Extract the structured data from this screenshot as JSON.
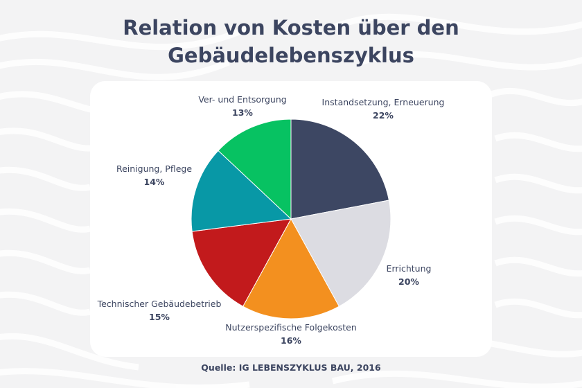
{
  "chart_data": {
    "type": "pie",
    "title": "Relation von Kosten über den Gebäudelebenszyklus",
    "slices": [
      {
        "label": "Instandsetzung, Erneuerung",
        "value": 22,
        "value_label": "22%",
        "color": "#3d4763"
      },
      {
        "label": "Errichtung",
        "value": 20,
        "value_label": "20%",
        "color": "#dcdce2"
      },
      {
        "label": "Nutzerspezifische Folgekosten",
        "value": 16,
        "value_label": "16%",
        "color": "#f3901f"
      },
      {
        "label": "Technischer Gebäudebetrieb",
        "value": 15,
        "value_label": "15%",
        "color": "#c21a1c"
      },
      {
        "label": "Reinigung, Pflege",
        "value": 14,
        "value_label": "14%",
        "color": "#0898a6"
      },
      {
        "label": "Ver- und Entsorgung",
        "value": 13,
        "value_label": "13%",
        "color": "#07c262"
      }
    ],
    "legend": "none"
  },
  "source": "Quelle: IG LEBENSZYKLUS BAU, 2016",
  "colors": {
    "title": "#3c4560",
    "background": "#f3f3f4",
    "card": "#ffffff"
  }
}
